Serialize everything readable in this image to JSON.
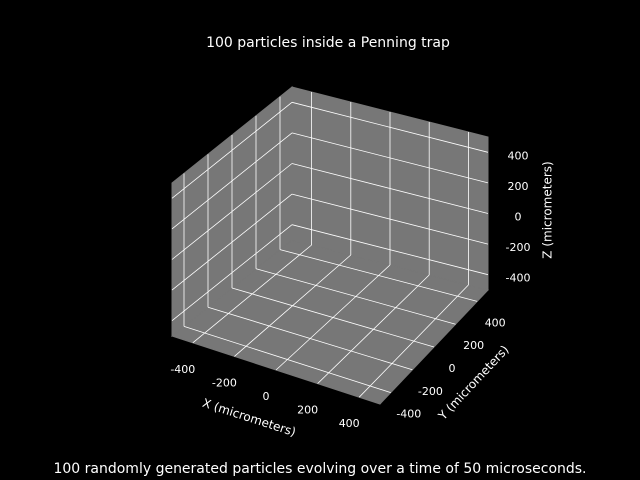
{
  "chart_data": {
    "type": "scatter3d",
    "title": "100 particles inside a Penning trap",
    "caption": "100 randomly generated particles evolving over a time of 50 microseconds.",
    "xlabel": "X (micrometers)",
    "ylabel": "Y (micrometers)",
    "zlabel": "Z (micrometers)",
    "xlim": [
      -500,
      500
    ],
    "ylim": [
      -500,
      500
    ],
    "zlim": [
      -500,
      500
    ],
    "xticks": [
      -400,
      -200,
      0,
      200,
      400
    ],
    "yticks": [
      -400,
      -200,
      0,
      200,
      400
    ],
    "zticks": [
      -400,
      -200,
      0,
      200,
      400
    ],
    "grid": true,
    "background": "#000000",
    "pane_color": "#777777"
  }
}
